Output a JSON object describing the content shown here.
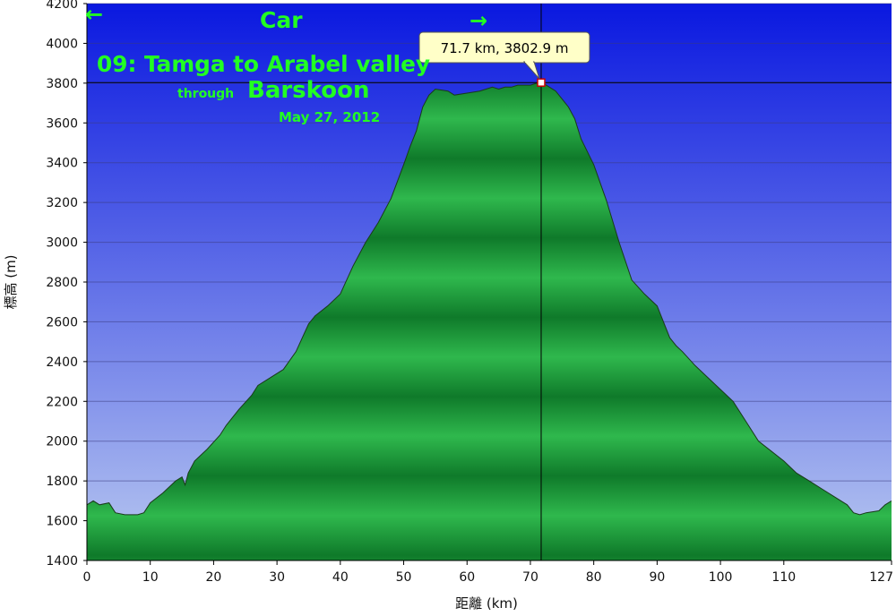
{
  "chart_data": {
    "type": "area",
    "xlabel": "距離 (km)",
    "ylabel": "標高 (m)",
    "xlim": [
      0,
      127
    ],
    "ylim": [
      1400,
      4200
    ],
    "x_ticks": [
      {
        "value": 0,
        "label": "0"
      },
      {
        "value": 10,
        "label": "10"
      },
      {
        "value": 20,
        "label": "20"
      },
      {
        "value": 30,
        "label": "30"
      },
      {
        "value": 40,
        "label": "40"
      },
      {
        "value": 50,
        "label": "50"
      },
      {
        "value": 60,
        "label": "60"
      },
      {
        "value": 70,
        "label": "70"
      },
      {
        "value": 80,
        "label": "80"
      },
      {
        "value": 90,
        "label": "90"
      },
      {
        "value": 100,
        "label": "100"
      },
      {
        "value": 110,
        "label": "110"
      },
      {
        "value": 127,
        "label": "127"
      }
    ],
    "y_ticks": [
      1400,
      1600,
      1800,
      2000,
      2200,
      2400,
      2600,
      2800,
      3000,
      3200,
      3400,
      3600,
      3800,
      4000,
      4200
    ],
    "grid": true,
    "colors": {
      "fill_top": "#0f7a2a",
      "fill_band": "#2fb84d",
      "line": "#1a3a1a",
      "bg_top": "#0a18e0",
      "bg_bottom": "#b8c8f0",
      "annotation": "#22ff22"
    },
    "series": [
      {
        "x": [
          0,
          1,
          2,
          3.5,
          4.5,
          6,
          8,
          9,
          10,
          12,
          14,
          15,
          15.5,
          16,
          17,
          19,
          21,
          22,
          24,
          26,
          27,
          29,
          31,
          33,
          34,
          35,
          36,
          38,
          40,
          42,
          44,
          46,
          48,
          50,
          51,
          52,
          53,
          54,
          55,
          57,
          58,
          60,
          62,
          63,
          64,
          65,
          66,
          67,
          68,
          70,
          71,
          71.7,
          72,
          73,
          74,
          75,
          76,
          77,
          78,
          80,
          82,
          84,
          86,
          88,
          90,
          92,
          93,
          94,
          96,
          98,
          100,
          102,
          104,
          106,
          108,
          110,
          112,
          114,
          116,
          118,
          120,
          121,
          122,
          123,
          125,
          126,
          127
        ],
        "y": [
          1680,
          1700,
          1680,
          1690,
          1640,
          1630,
          1630,
          1640,
          1690,
          1740,
          1800,
          1820,
          1780,
          1840,
          1900,
          1960,
          2030,
          2080,
          2160,
          2230,
          2280,
          2320,
          2360,
          2450,
          2520,
          2590,
          2630,
          2680,
          2740,
          2880,
          3000,
          3100,
          3220,
          3390,
          3480,
          3560,
          3680,
          3740,
          3770,
          3760,
          3740,
          3750,
          3760,
          3770,
          3780,
          3770,
          3780,
          3780,
          3790,
          3790,
          3800,
          3802.9,
          3800,
          3780,
          3760,
          3720,
          3680,
          3620,
          3520,
          3390,
          3210,
          3000,
          2810,
          2740,
          2680,
          2520,
          2480,
          2450,
          2380,
          2320,
          2260,
          2200,
          2100,
          2000,
          1950,
          1900,
          1840,
          1800,
          1760,
          1720,
          1680,
          1640,
          1630,
          1640,
          1650,
          1680,
          1700
        ]
      }
    ],
    "cursor": {
      "x": 71.7,
      "y": 3802.9,
      "label": "71.7 km, 3802.9 m"
    },
    "annotations": {
      "left_arrow": "←",
      "right_arrow": "→",
      "mode": "Car",
      "title": "09: Tamga to Arabel valley",
      "through": "through",
      "via": "Barskoon",
      "date": "May 27, 2012"
    }
  }
}
